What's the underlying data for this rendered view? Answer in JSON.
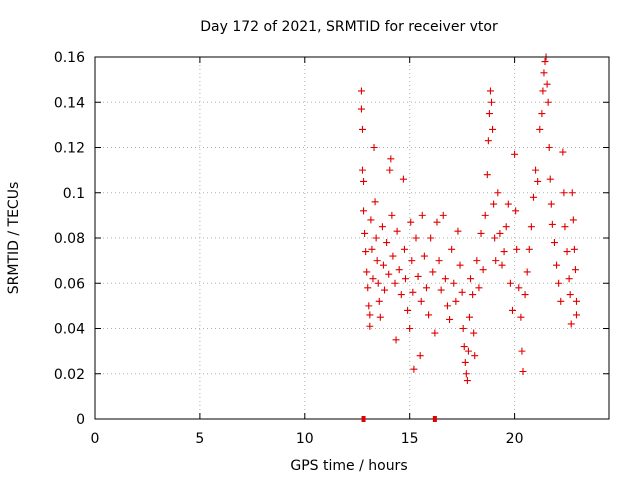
{
  "chart_data": {
    "type": "scatter",
    "title": "Day 172 of 2021, SRMTID for receiver vtor",
    "xlabel": "GPS time / hours",
    "ylabel": "SRMTID / TECUs",
    "xlim": [
      0,
      24.5
    ],
    "ylim": [
      0,
      0.16
    ],
    "x_ticks": [
      0,
      5,
      10,
      15,
      20
    ],
    "x_tick_labels": [
      "0",
      "5",
      "10",
      "15",
      "20"
    ],
    "y_ticks": [
      0,
      0.02,
      0.04,
      0.06,
      0.08,
      0.1,
      0.12,
      0.14,
      0.16
    ],
    "y_tick_labels": [
      "0",
      "0.02",
      "0.04",
      "0.06",
      "0.08",
      "0.1",
      "0.12",
      "0.14",
      "0.16"
    ],
    "grid": true,
    "marker": "plus",
    "series": [
      {
        "name": "SRMTID",
        "color": "#e00000",
        "points": [
          [
            12.7,
            0.145
          ],
          [
            12.7,
            0.137
          ],
          [
            12.75,
            0.128
          ],
          [
            12.75,
            0.11
          ],
          [
            12.8,
            0.105
          ],
          [
            12.8,
            0.092
          ],
          [
            12.85,
            0.082
          ],
          [
            12.9,
            0.074
          ],
          [
            12.95,
            0.065
          ],
          [
            13.0,
            0.058
          ],
          [
            13.05,
            0.05
          ],
          [
            13.1,
            0.046
          ],
          [
            13.1,
            0.041
          ],
          [
            13.15,
            0.088
          ],
          [
            13.2,
            0.075
          ],
          [
            13.25,
            0.062
          ],
          [
            13.3,
            0.12
          ],
          [
            13.35,
            0.096
          ],
          [
            13.4,
            0.08
          ],
          [
            13.45,
            0.07
          ],
          [
            13.5,
            0.06
          ],
          [
            13.55,
            0.052
          ],
          [
            13.6,
            0.045
          ],
          [
            13.7,
            0.085
          ],
          [
            13.75,
            0.068
          ],
          [
            13.8,
            0.057
          ],
          [
            13.9,
            0.078
          ],
          [
            14.0,
            0.064
          ],
          [
            14.05,
            0.11
          ],
          [
            14.1,
            0.115
          ],
          [
            14.15,
            0.09
          ],
          [
            14.2,
            0.072
          ],
          [
            14.3,
            0.06
          ],
          [
            14.35,
            0.035
          ],
          [
            14.4,
            0.083
          ],
          [
            14.5,
            0.066
          ],
          [
            14.6,
            0.055
          ],
          [
            14.7,
            0.106
          ],
          [
            14.75,
            0.075
          ],
          [
            14.8,
            0.062
          ],
          [
            14.9,
            0.048
          ],
          [
            15.0,
            0.04
          ],
          [
            15.05,
            0.087
          ],
          [
            15.1,
            0.07
          ],
          [
            15.15,
            0.056
          ],
          [
            15.2,
            0.022
          ],
          [
            15.3,
            0.08
          ],
          [
            15.4,
            0.063
          ],
          [
            15.5,
            0.028
          ],
          [
            15.55,
            0.052
          ],
          [
            15.6,
            0.09
          ],
          [
            15.7,
            0.072
          ],
          [
            15.8,
            0.058
          ],
          [
            15.9,
            0.046
          ],
          [
            16.0,
            0.08
          ],
          [
            16.1,
            0.065
          ],
          [
            16.2,
            0.038
          ],
          [
            16.3,
            0.087
          ],
          [
            16.4,
            0.07
          ],
          [
            16.5,
            0.057
          ],
          [
            16.6,
            0.09
          ],
          [
            16.7,
            0.062
          ],
          [
            16.8,
            0.05
          ],
          [
            16.9,
            0.044
          ],
          [
            17.0,
            0.075
          ],
          [
            17.1,
            0.06
          ],
          [
            17.2,
            0.052
          ],
          [
            17.3,
            0.083
          ],
          [
            17.4,
            0.068
          ],
          [
            17.5,
            0.056
          ],
          [
            17.55,
            0.04
          ],
          [
            17.6,
            0.032
          ],
          [
            17.65,
            0.025
          ],
          [
            17.7,
            0.02
          ],
          [
            17.75,
            0.017
          ],
          [
            17.8,
            0.03
          ],
          [
            17.85,
            0.045
          ],
          [
            17.9,
            0.062
          ],
          [
            18.0,
            0.055
          ],
          [
            18.05,
            0.038
          ],
          [
            18.1,
            0.028
          ],
          [
            18.2,
            0.07
          ],
          [
            18.3,
            0.058
          ],
          [
            18.4,
            0.082
          ],
          [
            18.5,
            0.066
          ],
          [
            18.6,
            0.09
          ],
          [
            18.7,
            0.108
          ],
          [
            18.75,
            0.123
          ],
          [
            18.8,
            0.135
          ],
          [
            18.85,
            0.145
          ],
          [
            18.9,
            0.14
          ],
          [
            18.95,
            0.128
          ],
          [
            19.0,
            0.095
          ],
          [
            19.05,
            0.08
          ],
          [
            19.1,
            0.07
          ],
          [
            19.2,
            0.1
          ],
          [
            19.3,
            0.082
          ],
          [
            19.4,
            0.068
          ],
          [
            19.5,
            0.074
          ],
          [
            19.6,
            0.085
          ],
          [
            19.7,
            0.095
          ],
          [
            19.8,
            0.06
          ],
          [
            19.9,
            0.048
          ],
          [
            20.0,
            0.117
          ],
          [
            20.05,
            0.092
          ],
          [
            20.1,
            0.075
          ],
          [
            20.2,
            0.058
          ],
          [
            20.3,
            0.045
          ],
          [
            20.35,
            0.03
          ],
          [
            20.4,
            0.021
          ],
          [
            20.5,
            0.055
          ],
          [
            20.6,
            0.065
          ],
          [
            20.7,
            0.075
          ],
          [
            20.8,
            0.085
          ],
          [
            20.9,
            0.098
          ],
          [
            21.0,
            0.11
          ],
          [
            21.1,
            0.105
          ],
          [
            21.2,
            0.128
          ],
          [
            21.3,
            0.135
          ],
          [
            21.35,
            0.145
          ],
          [
            21.4,
            0.153
          ],
          [
            21.45,
            0.158
          ],
          [
            21.5,
            0.16
          ],
          [
            21.55,
            0.148
          ],
          [
            21.6,
            0.14
          ],
          [
            21.65,
            0.12
          ],
          [
            21.7,
            0.106
          ],
          [
            21.75,
            0.095
          ],
          [
            21.8,
            0.086
          ],
          [
            21.9,
            0.078
          ],
          [
            22.0,
            0.068
          ],
          [
            22.1,
            0.06
          ],
          [
            22.2,
            0.052
          ],
          [
            22.3,
            0.118
          ],
          [
            22.35,
            0.1
          ],
          [
            22.4,
            0.085
          ],
          [
            22.5,
            0.074
          ],
          [
            22.6,
            0.062
          ],
          [
            22.65,
            0.055
          ],
          [
            22.7,
            0.042
          ],
          [
            22.75,
            0.1
          ],
          [
            22.8,
            0.088
          ],
          [
            22.85,
            0.075
          ],
          [
            22.9,
            0.066
          ],
          [
            22.95,
            0.052
          ],
          [
            22.95,
            0.046
          ]
        ]
      }
    ],
    "x_axis_markers": [
      12.8,
      16.2
    ]
  }
}
